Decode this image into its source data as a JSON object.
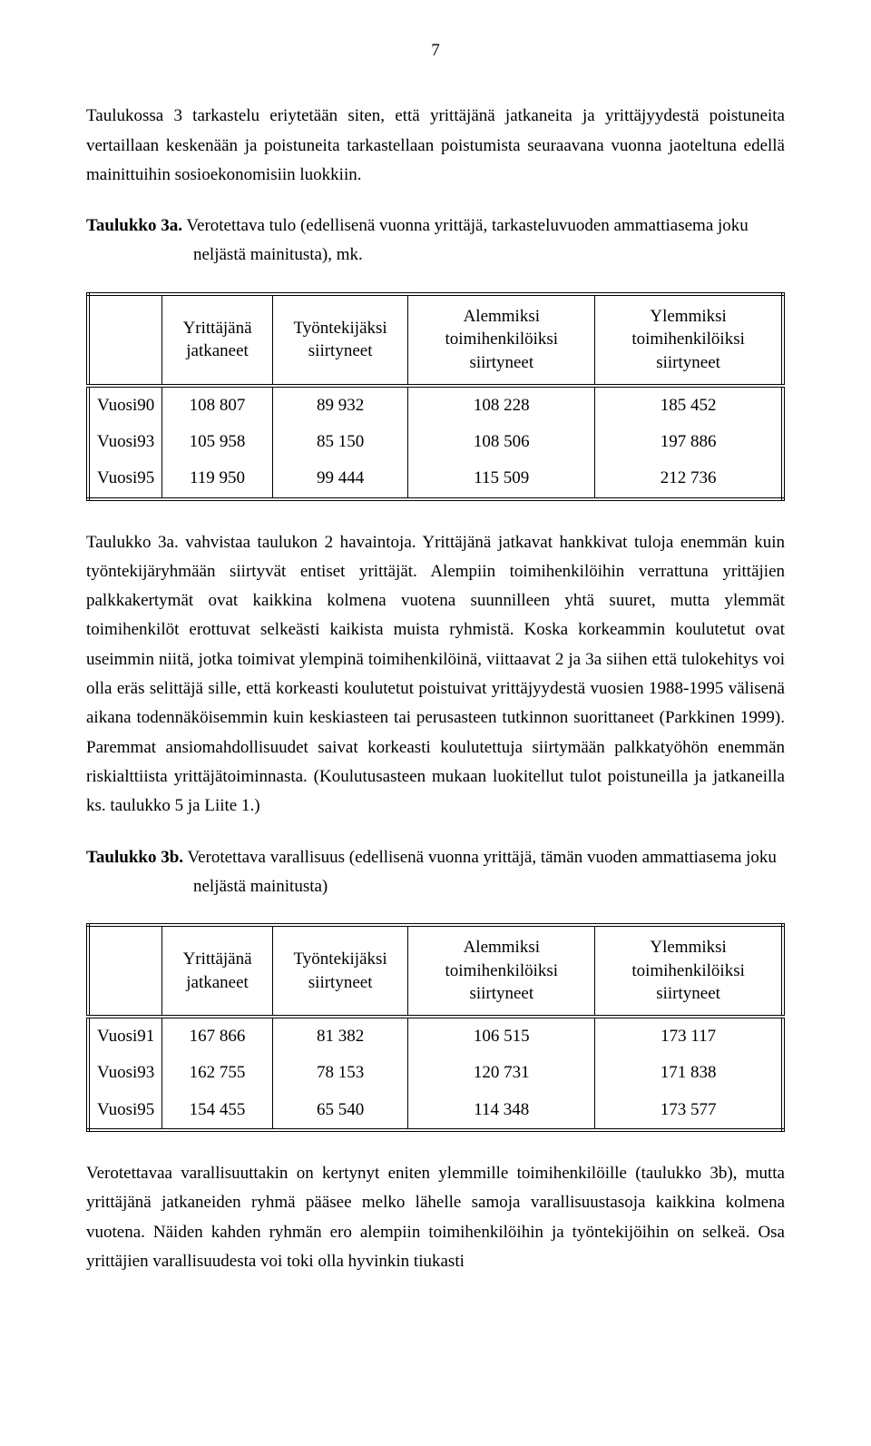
{
  "page_number": "7",
  "para1": "Taulukossa 3 tarkastelu eriytetään siten, että yrittäjänä jatkaneita ja yrittäjyydestä poistuneita vertaillaan keskenään ja poistuneita tarkastellaan poistumista seuraavana vuonna jaoteltuna edellä mainittuihin sosioekonomisiin luokkiin.",
  "caption3a_label": "Taulukko 3a.",
  "caption3a_text": " Verotettava tulo (edellisenä vuonna yrittäjä, tarkasteluvuoden ammattiasema joku neljästä mainitusta), mk.",
  "table3a": {
    "columns": [
      "",
      "Yrittäjänä jatkaneet",
      "Työntekijäksi siirtyneet",
      "Alemmiksi toimihenkilöiksi siirtyneet",
      "Ylemmiksi toimihenkilöiksi siirtyneet"
    ],
    "rows": [
      [
        "Vuosi90",
        "108 807",
        "89 932",
        "108 228",
        "185 452"
      ],
      [
        "Vuosi93",
        "105 958",
        "85 150",
        "108 506",
        "197 886"
      ],
      [
        "Vuosi95",
        "119 950",
        "99 444",
        "115 509",
        "212 736"
      ]
    ]
  },
  "para2": "Taulukko 3a. vahvistaa taulukon 2 havaintoja. Yrittäjänä jatkavat hankkivat tuloja enemmän kuin työntekijäryhmään siirtyvät entiset yrittäjät. Alempiin toimihenkilöihin verrattuna yrittäjien palkkakertymät ovat kaikkina kolmena vuotena suunnilleen yhtä suuret, mutta ylemmät toimihenkilöt erottuvat selkeästi kaikista muista ryhmistä. Koska korkeammin koulutetut ovat useimmin niitä, jotka toimivat ylempinä toimihenkilöinä, viittaavat 2 ja 3a siihen että tulokehitys voi olla eräs selittäjä sille, että korkeasti koulutetut poistuivat yrittäjyydestä vuosien 1988-1995 välisenä aikana todennäköisemmin kuin keskiasteen tai perusasteen tutkinnon suorittaneet (Parkkinen 1999). Paremmat ansiomahdollisuudet saivat korkeasti koulutettuja siirtymään palkkatyöhön enemmän riskialttiista yrittäjätoiminnasta. (Koulutusasteen mukaan luokitellut tulot poistuneilla ja jatkaneilla ks. taulukko 5 ja Liite 1.)",
  "caption3b_label": "Taulukko 3b.",
  "caption3b_text": " Verotettava varallisuus  (edellisenä vuonna yrittäjä, tämän vuoden ammattiasema joku neljästä mainitusta)",
  "table3b": {
    "columns": [
      "",
      "Yrittäjänä jatkaneet",
      "Työntekijäksi siirtyneet",
      "Alemmiksi toimihenkilöiksi siirtyneet",
      "Ylemmiksi toimihenkilöiksi siirtyneet"
    ],
    "rows": [
      [
        "Vuosi91",
        "167 866",
        "81 382",
        "106 515",
        "173 117"
      ],
      [
        "Vuosi93",
        "162 755",
        "78 153",
        "120 731",
        "171 838"
      ],
      [
        "Vuosi95",
        "154 455",
        "65 540",
        "114 348",
        "173 577"
      ]
    ]
  },
  "para3": "Verotettavaa varallisuuttakin on kertynyt eniten ylemmille toimihenkilöille (taulukko 3b), mutta yrittäjänä jatkaneiden ryhmä pääsee melko lähelle samoja varallisuustasoja kaikkina kolmena vuotena. Näiden kahden ryhmän ero alempiin toimihenkilöihin ja työntekijöihin on selkeä. Osa yrittäjien varallisuudesta voi toki olla hyvinkin tiukasti"
}
